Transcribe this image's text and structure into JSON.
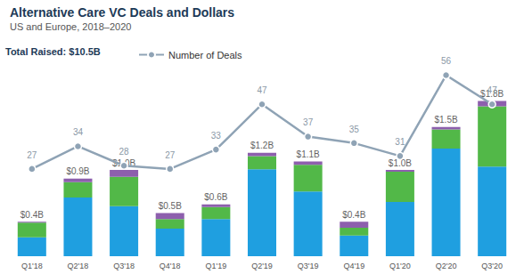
{
  "chart_data": {
    "type": "bar",
    "title": "Alternative Care VC Deals and Dollars",
    "subtitle": "US and Europe, 2018–2020",
    "annotation": "Total Raised: $10.5B",
    "categories": [
      "Q1'18",
      "Q2'18",
      "Q3'18",
      "Q4'18",
      "Q1'19",
      "Q2'19",
      "Q3'19",
      "Q4'19",
      "Q1'20",
      "Q2'20",
      "Q3'20"
    ],
    "series": [
      {
        "color": "#1f9fe0",
        "values": [
          0.22,
          0.68,
          0.58,
          0.32,
          0.43,
          1.01,
          0.75,
          0.24,
          0.63,
          1.25,
          1.04
        ]
      },
      {
        "color": "#52b848",
        "values": [
          0.17,
          0.18,
          0.34,
          0.11,
          0.14,
          0.15,
          0.31,
          0.09,
          0.35,
          0.22,
          0.7
        ]
      },
      {
        "color": "#8d5fad",
        "values": [
          0.01,
          0.04,
          0.08,
          0.07,
          0.03,
          0.04,
          0.04,
          0.07,
          0.02,
          0.03,
          0.06
        ]
      },
      {
        "name": "Number of Deals",
        "type": "line",
        "axis": "y2",
        "color": "#8fa3b5",
        "marker": "circle",
        "data_labels": true,
        "values": [
          27,
          34,
          28,
          27,
          33,
          47,
          37,
          35,
          31,
          56,
          47
        ]
      }
    ],
    "totals": [
      0.4,
      0.9,
      1.0,
      0.5,
      0.6,
      1.2,
      1.1,
      0.4,
      1.0,
      1.5,
      1.8
    ],
    "total_labels": [
      "$0.4B",
      "$0.9B",
      "$1.0B",
      "$0.5B",
      "$0.6B",
      "$1.2B",
      "$1.1B",
      "$0.4B",
      "$1.0B",
      "$1.5B",
      "$1.8B"
    ],
    "stacked": true,
    "ylim": [
      0,
      2.25
    ],
    "yticks": [
      0,
      2.25
    ],
    "y2lim": [
      0,
      60
    ],
    "y2ticks": [
      0,
      60
    ],
    "grid": false,
    "legend": "upper left",
    "tick_labels": "x"
  }
}
